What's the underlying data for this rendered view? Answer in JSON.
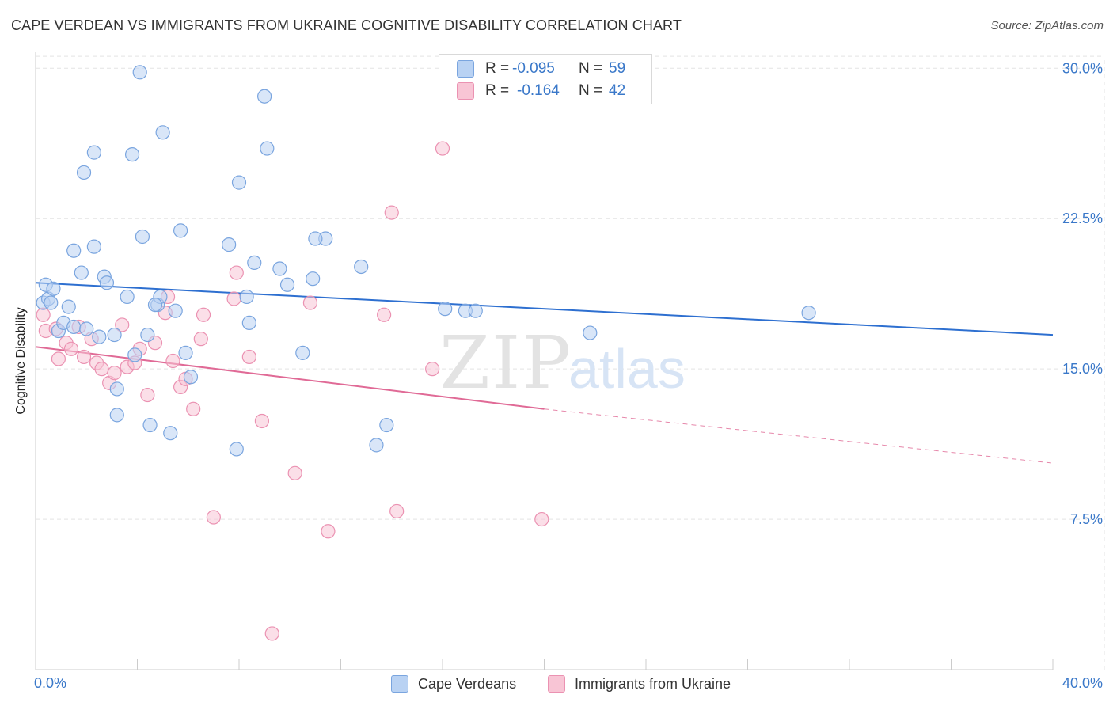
{
  "title": "CAPE VERDEAN VS IMMIGRANTS FROM UKRAINE COGNITIVE DISABILITY CORRELATION CHART",
  "source": "Source: ZipAtlas.com",
  "watermark": {
    "zip": "ZIP",
    "atlas": "atlas"
  },
  "legend": {
    "rows": [
      {
        "r_label": "R =",
        "r_value": "-0.095",
        "n_label": "N =",
        "n_value": "59"
      },
      {
        "r_label": "R =",
        "r_value": "-0.164",
        "n_label": "N =",
        "n_value": "42"
      }
    ]
  },
  "bottom_legend": [
    "Cape Verdeans",
    "Immigrants from Ukraine"
  ],
  "colors": {
    "blue_fill": "#b9d2f3",
    "blue_stroke": "#7aa5df",
    "blue_line": "#2d6fd0",
    "pink_fill": "#f8c5d5",
    "pink_stroke": "#eb92b2",
    "pink_line": "#e06a96",
    "tick_text": "#3a78c9",
    "grid": "#e3e3e3"
  },
  "chart_data": {
    "type": "scatter",
    "title": "CAPE VERDEAN VS IMMIGRANTS FROM UKRAINE COGNITIVE DISABILITY CORRELATION CHART",
    "xlabel": "",
    "ylabel": "Cognitive Disability",
    "xlim": [
      0,
      40
    ],
    "ylim": [
      0,
      30.8
    ],
    "x_tick_labels": [
      "0.0%",
      "40.0%"
    ],
    "y_ticks": [
      7.5,
      15.0,
      22.5,
      30.0
    ],
    "y_tick_labels": [
      "7.5%",
      "15.0%",
      "22.5%",
      "30.0%"
    ],
    "grid": true,
    "legend_position": "top-center",
    "series": [
      {
        "name": "Cape Verdeans",
        "R": -0.095,
        "N": 59,
        "trend": {
          "x": [
            0,
            40
          ],
          "y": [
            19.3,
            16.7
          ]
        },
        "points": [
          [
            0.3,
            18.3
          ],
          [
            0.5,
            18.5
          ],
          [
            0.4,
            19.2
          ],
          [
            0.7,
            19.0
          ],
          [
            0.6,
            18.3
          ],
          [
            0.9,
            16.9
          ],
          [
            1.1,
            17.3
          ],
          [
            1.3,
            18.1
          ],
          [
            1.5,
            17.1
          ],
          [
            2.0,
            17.0
          ],
          [
            2.5,
            16.6
          ],
          [
            1.8,
            19.8
          ],
          [
            1.5,
            20.9
          ],
          [
            2.3,
            21.1
          ],
          [
            2.7,
            19.6
          ],
          [
            2.8,
            19.3
          ],
          [
            3.1,
            16.7
          ],
          [
            3.2,
            14.0
          ],
          [
            3.2,
            12.7
          ],
          [
            3.6,
            18.6
          ],
          [
            3.8,
            25.7
          ],
          [
            3.9,
            15.7
          ],
          [
            4.2,
            21.6
          ],
          [
            4.4,
            16.7
          ],
          [
            4.5,
            12.2
          ],
          [
            4.8,
            18.2
          ],
          [
            4.9,
            18.6
          ],
          [
            4.1,
            29.8
          ],
          [
            5.0,
            26.8
          ],
          [
            5.3,
            11.8
          ],
          [
            5.5,
            17.9
          ],
          [
            5.7,
            21.9
          ],
          [
            5.9,
            15.8
          ],
          [
            6.1,
            14.6
          ],
          [
            7.6,
            21.2
          ],
          [
            7.9,
            11.0
          ],
          [
            8.0,
            24.3
          ],
          [
            8.3,
            18.6
          ],
          [
            8.4,
            17.3
          ],
          [
            8.6,
            20.3
          ],
          [
            9.0,
            28.6
          ],
          [
            9.1,
            26.0
          ],
          [
            9.6,
            20.0
          ],
          [
            9.9,
            19.2
          ],
          [
            10.5,
            15.8
          ],
          [
            10.9,
            19.5
          ],
          [
            11.4,
            21.5
          ],
          [
            11.0,
            21.5
          ],
          [
            12.8,
            20.1
          ],
          [
            13.4,
            11.2
          ],
          [
            13.8,
            12.2
          ],
          [
            16.1,
            18.0
          ],
          [
            16.9,
            17.9
          ],
          [
            17.3,
            17.9
          ],
          [
            21.8,
            16.8
          ],
          [
            30.4,
            17.8
          ],
          [
            1.9,
            24.8
          ],
          [
            2.3,
            25.8
          ],
          [
            4.7,
            18.2
          ]
        ]
      },
      {
        "name": "Immigrants from Ukraine",
        "R": -0.164,
        "N": 42,
        "trend": {
          "x": [
            0,
            20
          ],
          "y": [
            16.1,
            13.0
          ],
          "dashed_to": {
            "x": 40,
            "y": 10.3
          }
        },
        "points": [
          [
            0.3,
            17.7
          ],
          [
            0.4,
            16.9
          ],
          [
            0.8,
            17.0
          ],
          [
            0.9,
            15.5
          ],
          [
            1.2,
            16.3
          ],
          [
            1.4,
            16.0
          ],
          [
            1.7,
            17.1
          ],
          [
            1.9,
            15.6
          ],
          [
            2.2,
            16.5
          ],
          [
            2.4,
            15.3
          ],
          [
            2.6,
            15.0
          ],
          [
            2.9,
            14.3
          ],
          [
            3.1,
            14.8
          ],
          [
            3.4,
            17.2
          ],
          [
            3.6,
            15.1
          ],
          [
            3.9,
            15.3
          ],
          [
            4.1,
            16.0
          ],
          [
            4.4,
            13.7
          ],
          [
            4.7,
            16.3
          ],
          [
            5.1,
            17.8
          ],
          [
            5.2,
            18.6
          ],
          [
            5.4,
            15.4
          ],
          [
            5.7,
            14.1
          ],
          [
            5.9,
            14.5
          ],
          [
            6.2,
            13.0
          ],
          [
            6.5,
            16.5
          ],
          [
            6.6,
            17.7
          ],
          [
            7.0,
            7.6
          ],
          [
            7.8,
            18.5
          ],
          [
            7.9,
            19.8
          ],
          [
            8.4,
            15.6
          ],
          [
            8.9,
            12.4
          ],
          [
            9.3,
            1.8
          ],
          [
            10.2,
            9.8
          ],
          [
            10.8,
            18.3
          ],
          [
            11.5,
            6.9
          ],
          [
            13.7,
            17.7
          ],
          [
            14.0,
            22.8
          ],
          [
            14.2,
            7.9
          ],
          [
            15.6,
            15.0
          ],
          [
            16.0,
            26.0
          ],
          [
            19.9,
            7.5
          ]
        ]
      }
    ]
  }
}
